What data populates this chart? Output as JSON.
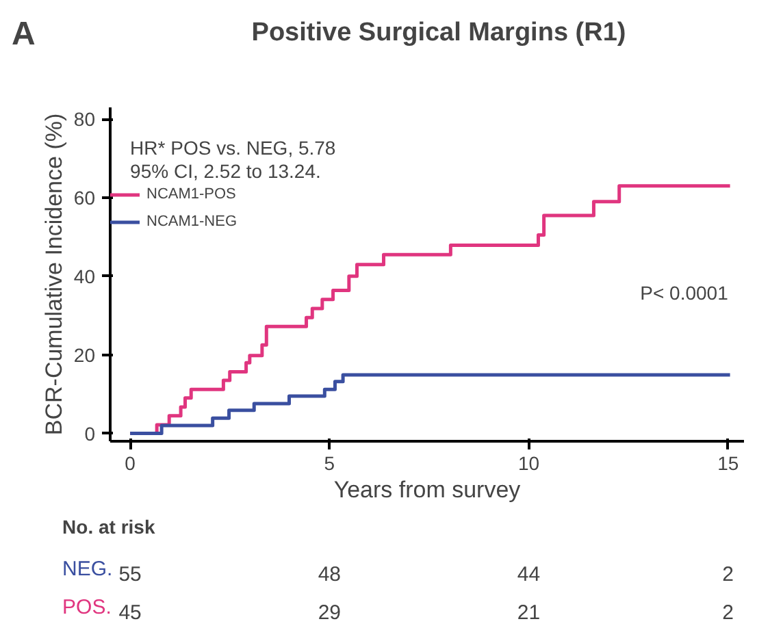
{
  "chart_data": {
    "type": "step",
    "title": "Positive Surgical Margins (R1)",
    "xlabel": "Years from survey",
    "ylabel": "BCR-Cumulative Incidence (%)",
    "xlim": [
      -0.5,
      15.4
    ],
    "ylim": [
      -2,
      83
    ],
    "xticks": [
      0,
      5,
      10,
      15
    ],
    "yticks": [
      0,
      20,
      40,
      60,
      80
    ],
    "grid": false,
    "legend": "top left",
    "marker": "none",
    "line_style": "solid",
    "annotations": [
      "A",
      "HR* POS vs. NEG, 5.78",
      "95% CI, 2.52 to 13.24.",
      "P< 0.0001",
      "No. at risk",
      "NEG.",
      "55",
      "48",
      "44",
      "2",
      "POS.",
      "45",
      "29",
      "21",
      "2"
    ],
    "series": [
      {
        "name": "NCAM1-POS",
        "color": "#e0357f",
        "x": [
          0,
          0.67,
          0.98,
          1.27,
          1.38,
          1.53,
          2.34,
          2.5,
          2.91,
          3.0,
          3.31,
          3.42,
          4.42,
          4.57,
          4.82,
          5.09,
          5.49,
          5.69,
          6.36,
          8.04,
          10.24,
          10.38,
          11.63,
          12.27,
          15.05
        ],
        "values": [
          0,
          2.2,
          4.5,
          6.7,
          9,
          11.2,
          13.5,
          15.7,
          18,
          19.8,
          22.5,
          27.2,
          29.5,
          31.8,
          34.1,
          36.4,
          40,
          43,
          45.5,
          47.9,
          50.5,
          55.5,
          59,
          63,
          63
        ]
      },
      {
        "name": "NCAM1-NEG",
        "color": "#3a4fa0",
        "x": [
          0,
          0.79,
          2.07,
          2.48,
          3.11,
          3.99,
          4.88,
          5.14,
          5.34,
          15.05
        ],
        "values": [
          0,
          2,
          3.9,
          5.9,
          7.6,
          9.5,
          11.2,
          13.2,
          14.9,
          14.9
        ]
      }
    ]
  }
}
